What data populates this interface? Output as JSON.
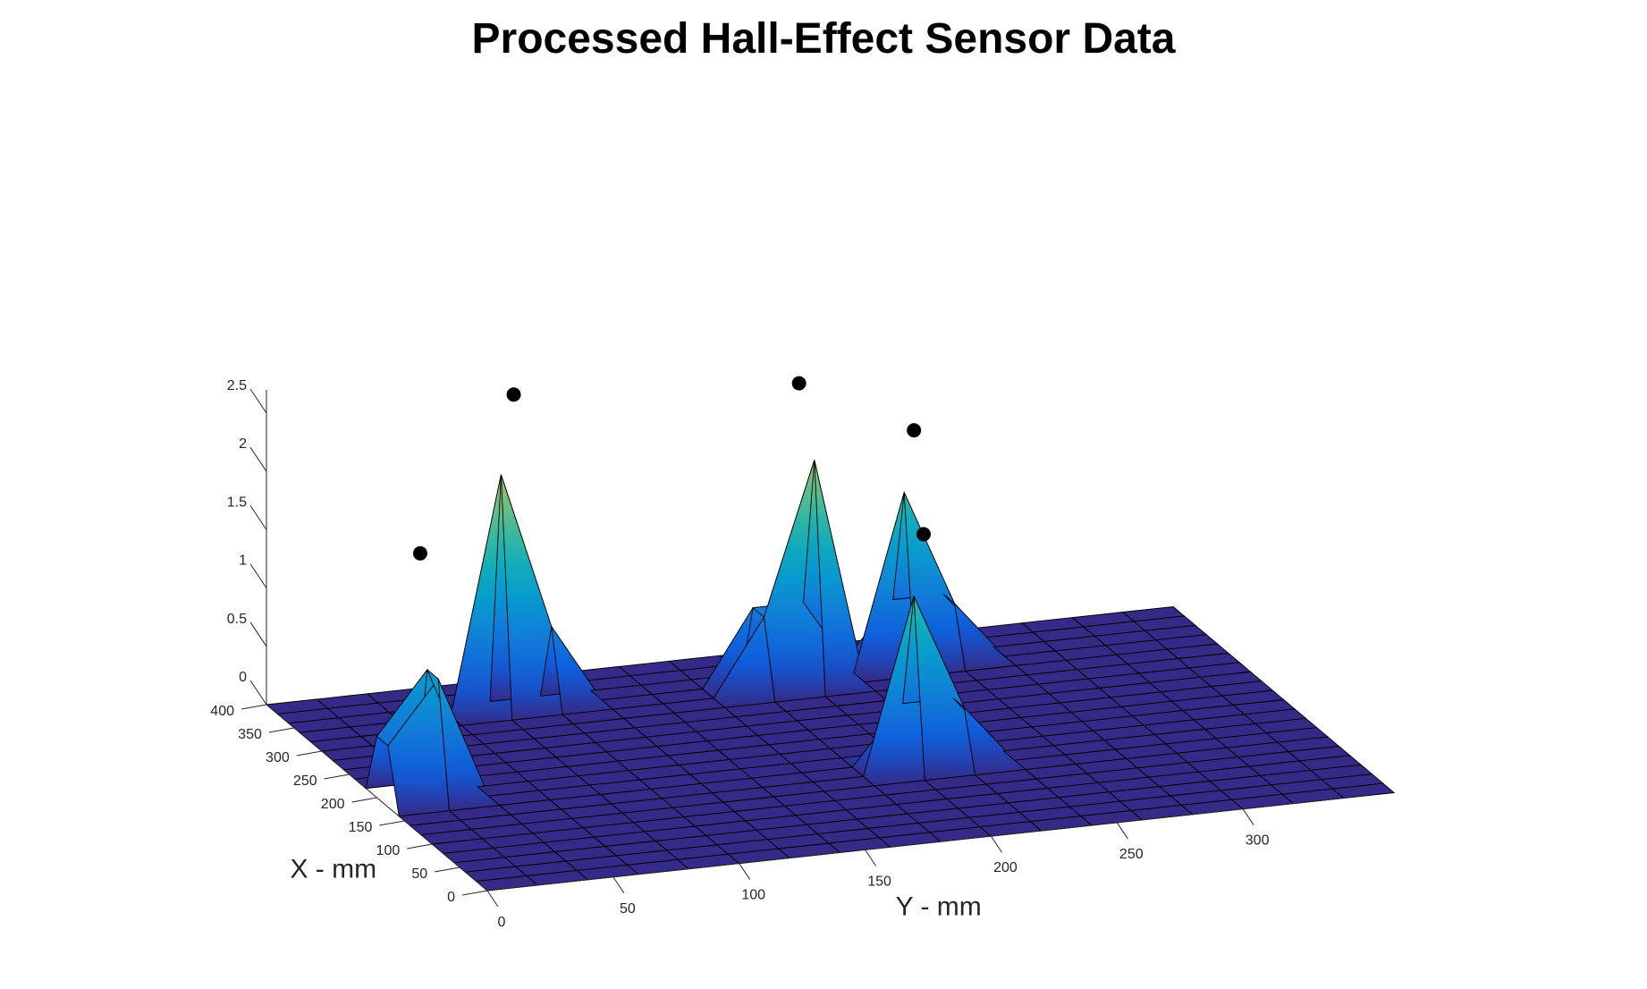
{
  "chart_data": {
    "type": "surface",
    "title": "Processed Hall-Effect Sensor Data",
    "xlabel": "X - mm",
    "ylabel": "Y - mm",
    "zlabel": "",
    "xlim": [
      0,
      400
    ],
    "ylim": [
      0,
      350
    ],
    "zlim": [
      0,
      2.7
    ],
    "x_ticks": [
      0,
      50,
      100,
      150,
      200,
      250,
      300,
      350,
      400
    ],
    "y_ticks": [
      0,
      50,
      100,
      150,
      200,
      250,
      300
    ],
    "z_ticks": [
      0,
      0.5,
      1,
      1.5,
      2,
      2.5
    ],
    "x_tick_labels": [
      "0",
      "50",
      "100",
      "150",
      "200",
      "250",
      "300",
      "350",
      "400"
    ],
    "y_tick_labels": [
      "0",
      "50",
      "100",
      "150",
      "200",
      "250",
      "300"
    ],
    "z_tick_labels": [
      "0",
      "0.5",
      "1",
      "1.5",
      "2",
      "2.5"
    ],
    "grid_step": 20,
    "colormap": "parula",
    "base_color": "#352a87",
    "peak_marker_color": "#000000",
    "peaks": [
      {
        "x": 145,
        "y": 205,
        "z": 2.0
      },
      {
        "x": 345,
        "y": 245,
        "z": 2.0
      },
      {
        "x": 325,
        "y": 195,
        "z": 2.6
      },
      {
        "x": 340,
        "y": 85,
        "z": 2.7
      },
      {
        "x": 190,
        "y": 15,
        "z": 2.1
      }
    ]
  }
}
